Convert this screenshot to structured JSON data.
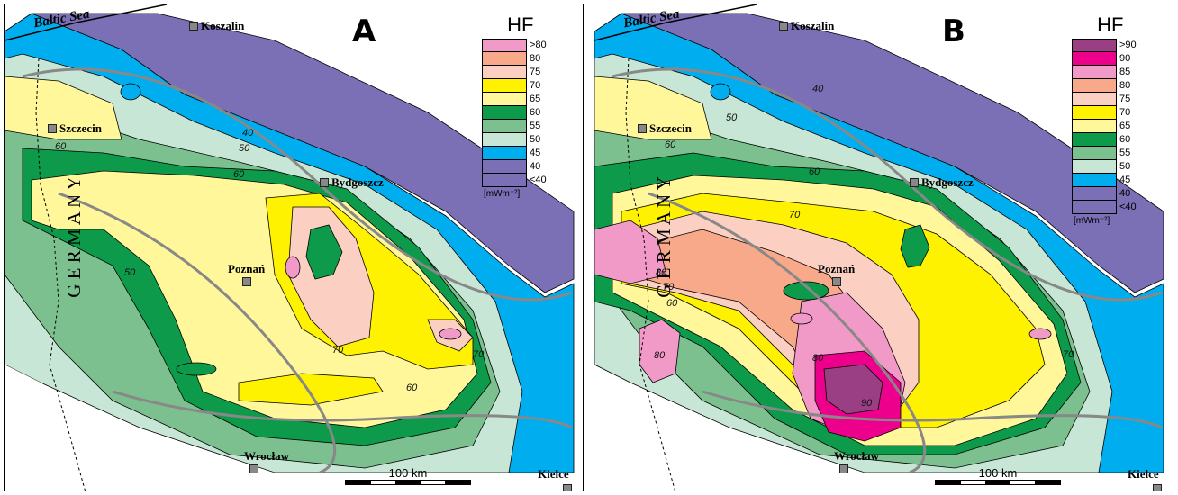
{
  "panels": [
    {
      "letter": "A",
      "legend": {
        "title": "HF",
        "unit": "[mWm⁻²]",
        "classes": [
          {
            "label": ">80",
            "color": "#f29ac7"
          },
          {
            "label": "80",
            "color": "#f7a98a"
          },
          {
            "label": "75",
            "color": "#fbd0c2"
          },
          {
            "label": "70",
            "color": "#fff200"
          },
          {
            "label": "65",
            "color": "#fff79a"
          },
          {
            "label": "60",
            "color": "#0d9b4b"
          },
          {
            "label": "55",
            "color": "#7cc08f"
          },
          {
            "label": "50",
            "color": "#c8e6d6"
          },
          {
            "label": "45",
            "color": "#00aeef"
          },
          {
            "label": "40",
            "color": "#7b6fb6"
          },
          {
            "label": "<40",
            "color": "#7b6fb6"
          }
        ]
      },
      "isolines": [
        "40",
        "50",
        "60",
        "60",
        "50",
        "70",
        "70",
        "60"
      ],
      "sea": "Baltic Sea",
      "cities": [
        "Koszalin",
        "Szczecin",
        "Bydgoszcz",
        "Poznań",
        "Wrocław"
      ],
      "country": "G E R M A N Y",
      "scale_label": "100 km"
    },
    {
      "letter": "B",
      "legend": {
        "title": "HF",
        "unit": "[mWm⁻²]",
        "classes": [
          {
            "label": ">90",
            "color": "#9b3f84"
          },
          {
            "label": "90",
            "color": "#ec008c"
          },
          {
            "label": "85",
            "color": "#f29ac7"
          },
          {
            "label": "80",
            "color": "#f7a98a"
          },
          {
            "label": "75",
            "color": "#fbd0c2"
          },
          {
            "label": "70",
            "color": "#fff200"
          },
          {
            "label": "65",
            "color": "#fff79a"
          },
          {
            "label": "60",
            "color": "#0d9b4b"
          },
          {
            "label": "55",
            "color": "#7cc08f"
          },
          {
            "label": "50",
            "color": "#c8e6d6"
          },
          {
            "label": "45",
            "color": "#00aeef"
          },
          {
            "label": "40",
            "color": "#7b6fb6"
          },
          {
            "label": "<40",
            "color": "#7b6fb6"
          }
        ]
      },
      "isolines": [
        "40",
        "50",
        "60",
        "60",
        "70",
        "80",
        "70",
        "60",
        "80",
        "70",
        "90",
        "80"
      ],
      "sea": "Baltic Sea",
      "cities": [
        "Koszalin",
        "Szczecin",
        "Bydgoszcz",
        "Poznań",
        "Wrocław",
        "Kielce"
      ],
      "country": "G E R M A N Y",
      "scale_label": "100 km"
    }
  ],
  "kielce_label_a": "Kielce"
}
